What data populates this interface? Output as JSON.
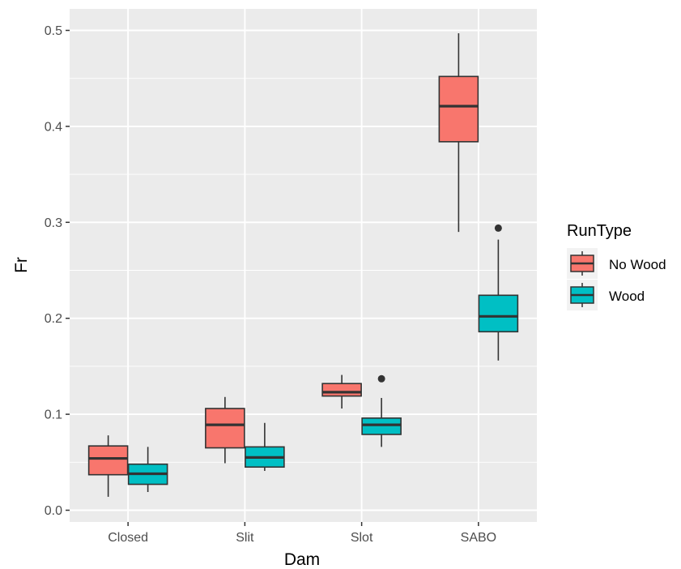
{
  "chart_data": {
    "type": "boxplot",
    "title": "",
    "xlabel": "Dam",
    "ylabel": "Fr",
    "ylim": [
      -0.007,
      0.52
    ],
    "yticks": [
      "0.0",
      "0.1",
      "0.2",
      "0.3",
      "0.4",
      "0.5"
    ],
    "categories": [
      "Closed",
      "Slit",
      "Slot",
      "SABO"
    ],
    "grid": true,
    "legend": {
      "title": "RunType",
      "placement": "right"
    },
    "series": [
      {
        "name": "No Wood",
        "color": "#F8766D",
        "boxes": [
          {
            "category": "Closed",
            "whisker_low": 0.014,
            "q1": 0.037,
            "median": 0.054,
            "q3": 0.067,
            "whisker_high": 0.078,
            "outliers": []
          },
          {
            "category": "Slit",
            "whisker_low": 0.049,
            "q1": 0.065,
            "median": 0.089,
            "q3": 0.106,
            "whisker_high": 0.118,
            "outliers": []
          },
          {
            "category": "Slot",
            "whisker_low": 0.106,
            "q1": 0.119,
            "median": 0.123,
            "q3": 0.132,
            "whisker_high": 0.141,
            "outliers": []
          },
          {
            "category": "SABO",
            "whisker_low": 0.29,
            "q1": 0.384,
            "median": 0.421,
            "q3": 0.452,
            "whisker_high": 0.497,
            "outliers": []
          }
        ]
      },
      {
        "name": "Wood",
        "color": "#00BFC4",
        "boxes": [
          {
            "category": "Closed",
            "whisker_low": 0.019,
            "q1": 0.027,
            "median": 0.038,
            "q3": 0.048,
            "whisker_high": 0.066,
            "outliers": []
          },
          {
            "category": "Slit",
            "whisker_low": 0.041,
            "q1": 0.045,
            "median": 0.055,
            "q3": 0.066,
            "whisker_high": 0.091,
            "outliers": []
          },
          {
            "category": "Slot",
            "whisker_low": 0.066,
            "q1": 0.079,
            "median": 0.089,
            "q3": 0.096,
            "whisker_high": 0.117,
            "outliers": [
              0.137
            ]
          },
          {
            "category": "SABO",
            "whisker_low": 0.156,
            "q1": 0.186,
            "median": 0.202,
            "q3": 0.224,
            "whisker_high": 0.282,
            "outliers": [
              0.294
            ]
          }
        ]
      }
    ]
  }
}
